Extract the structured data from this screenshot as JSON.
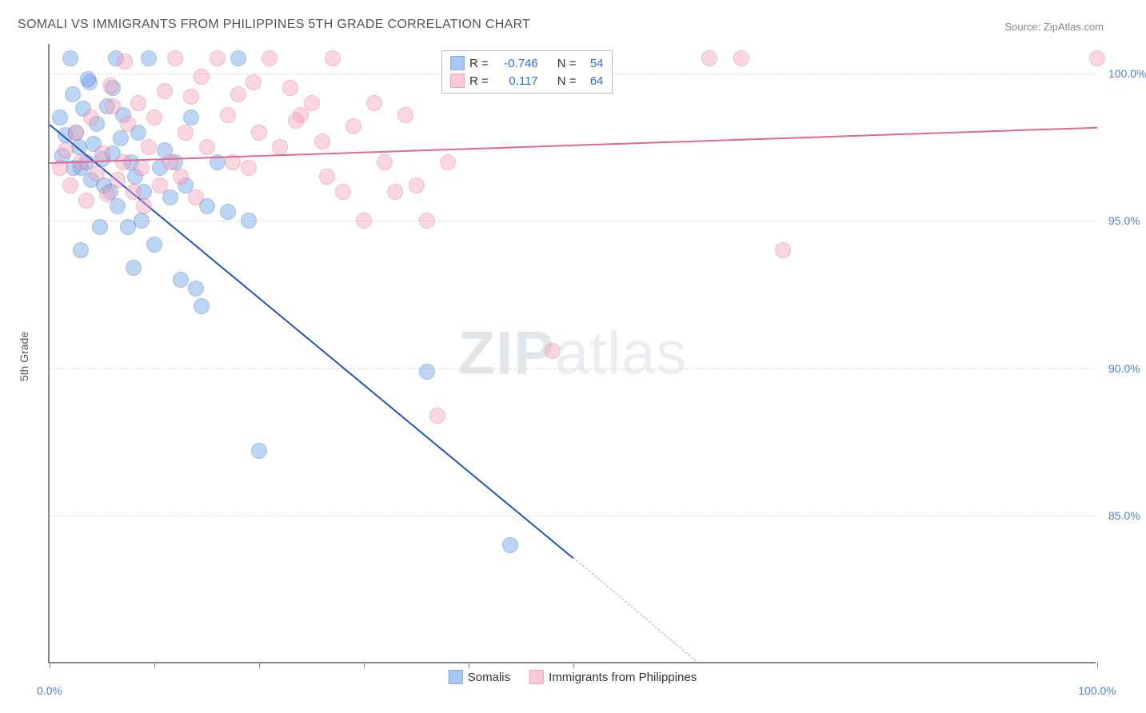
{
  "title": "SOMALI VS IMMIGRANTS FROM PHILIPPINES 5TH GRADE CORRELATION CHART",
  "source": "Source: ZipAtlas.com",
  "ylabel": "5th Grade",
  "watermark_a": "ZIP",
  "watermark_b": "atlas",
  "chart": {
    "type": "scatter",
    "background_color": "#ffffff",
    "grid_color": "#dddddd",
    "axis_color": "#888888",
    "tick_label_color": "#4a7fd6",
    "xlim": [
      0,
      100
    ],
    "ylim": [
      80,
      101
    ],
    "yticks": [
      85,
      90,
      95,
      100
    ],
    "ytick_labels": [
      "85.0%",
      "90.0%",
      "95.0%",
      "100.0%"
    ],
    "xticks": [
      0,
      10,
      20,
      30,
      40,
      50,
      100
    ],
    "xtick_labels_shown": {
      "0": "0.0%",
      "100": "100.0%"
    },
    "point_radius": 10,
    "point_opacity": 0.45,
    "series": [
      {
        "name": "Somalis",
        "color": "#6fa4e8",
        "stroke": "#3b73c9",
        "R": "-0.746",
        "N": "54",
        "trend": {
          "x1": 0,
          "y1": 98.3,
          "x2": 50,
          "y2": 83.6,
          "color": "#1f56c4",
          "width": 2
        },
        "trend_ext": {
          "x1": 50,
          "y1": 83.6,
          "x2": 62,
          "y2": 80.0,
          "color": "#aaaaaa",
          "dashed": true
        },
        "points": [
          [
            1.0,
            98.5
          ],
          [
            1.5,
            97.9
          ],
          [
            2.0,
            100.5
          ],
          [
            2.2,
            99.3
          ],
          [
            2.5,
            98.0
          ],
          [
            2.8,
            97.5
          ],
          [
            3.0,
            96.8
          ],
          [
            3.2,
            98.8
          ],
          [
            3.5,
            97.0
          ],
          [
            3.8,
            99.7
          ],
          [
            4.0,
            96.4
          ],
          [
            4.2,
            97.6
          ],
          [
            4.5,
            98.3
          ],
          [
            5.0,
            97.1
          ],
          [
            5.2,
            96.2
          ],
          [
            5.5,
            98.9
          ],
          [
            5.8,
            96.0
          ],
          [
            6.0,
            97.3
          ],
          [
            6.3,
            100.5
          ],
          [
            6.5,
            95.5
          ],
          [
            6.8,
            97.8
          ],
          [
            7.0,
            98.6
          ],
          [
            7.5,
            94.8
          ],
          [
            7.8,
            97.0
          ],
          [
            8.0,
            93.4
          ],
          [
            8.2,
            96.5
          ],
          [
            8.5,
            98.0
          ],
          [
            8.8,
            95.0
          ],
          [
            9.0,
            96.0
          ],
          [
            9.5,
            100.5
          ],
          [
            10.0,
            94.2
          ],
          [
            10.5,
            96.8
          ],
          [
            11.0,
            97.4
          ],
          [
            11.5,
            95.8
          ],
          [
            12.0,
            97.0
          ],
          [
            12.5,
            93.0
          ],
          [
            13.0,
            96.2
          ],
          [
            13.5,
            98.5
          ],
          [
            14.0,
            92.7
          ],
          [
            14.5,
            92.1
          ],
          [
            15.0,
            95.5
          ],
          [
            16.0,
            97.0
          ],
          [
            17.0,
            95.3
          ],
          [
            18.0,
            100.5
          ],
          [
            19.0,
            95.0
          ],
          [
            20.0,
            87.2
          ],
          [
            36.0,
            89.9
          ],
          [
            44.0,
            84.0
          ],
          [
            3.0,
            94.0
          ],
          [
            4.8,
            94.8
          ],
          [
            6.0,
            99.5
          ],
          [
            1.2,
            97.2
          ],
          [
            2.3,
            96.8
          ],
          [
            3.7,
            99.8
          ]
        ]
      },
      {
        "name": "Immigrants from Philippines",
        "color": "#f4a6bb",
        "stroke": "#e06a8c",
        "R": "0.117",
        "N": "64",
        "trend": {
          "x1": 0,
          "y1": 97.0,
          "x2": 100,
          "y2": 98.2,
          "color": "#e06a8c",
          "width": 2
        },
        "points": [
          [
            1.0,
            96.8
          ],
          [
            1.5,
            97.4
          ],
          [
            2.0,
            96.2
          ],
          [
            2.5,
            98.0
          ],
          [
            3.0,
            97.0
          ],
          [
            3.5,
            95.7
          ],
          [
            4.0,
            98.5
          ],
          [
            4.5,
            96.6
          ],
          [
            5.0,
            97.3
          ],
          [
            5.5,
            95.9
          ],
          [
            6.0,
            98.9
          ],
          [
            6.5,
            96.4
          ],
          [
            7.0,
            97.0
          ],
          [
            7.5,
            98.3
          ],
          [
            8.0,
            96.0
          ],
          [
            8.5,
            99.0
          ],
          [
            9.0,
            95.5
          ],
          [
            9.5,
            97.5
          ],
          [
            10.0,
            98.5
          ],
          [
            10.5,
            96.2
          ],
          [
            11.0,
            99.4
          ],
          [
            11.5,
            97.0
          ],
          [
            12.0,
            100.5
          ],
          [
            12.5,
            96.5
          ],
          [
            13.0,
            98.0
          ],
          [
            13.5,
            99.2
          ],
          [
            14.0,
            95.8
          ],
          [
            15.0,
            97.5
          ],
          [
            16.0,
            100.5
          ],
          [
            17.0,
            98.6
          ],
          [
            18.0,
            99.3
          ],
          [
            19.0,
            96.8
          ],
          [
            20.0,
            98.0
          ],
          [
            21.0,
            100.5
          ],
          [
            22.0,
            97.5
          ],
          [
            23.0,
            99.5
          ],
          [
            24.0,
            98.6
          ],
          [
            25.0,
            99.0
          ],
          [
            26.0,
            97.7
          ],
          [
            27.0,
            100.5
          ],
          [
            28.0,
            96.0
          ],
          [
            29.0,
            98.2
          ],
          [
            30.0,
            95.0
          ],
          [
            31.0,
            99.0
          ],
          [
            32.0,
            97.0
          ],
          [
            33.0,
            96.0
          ],
          [
            34.0,
            98.6
          ],
          [
            35.0,
            96.2
          ],
          [
            36.0,
            95.0
          ],
          [
            37.0,
            88.4
          ],
          [
            38.0,
            97.0
          ],
          [
            26.5,
            96.5
          ],
          [
            48.0,
            90.6
          ],
          [
            63.0,
            100.5
          ],
          [
            66.0,
            100.5
          ],
          [
            70.0,
            94.0
          ],
          [
            100.0,
            100.5
          ],
          [
            5.8,
            99.6
          ],
          [
            7.2,
            100.4
          ],
          [
            8.8,
            96.8
          ],
          [
            14.5,
            99.9
          ],
          [
            17.5,
            97.0
          ],
          [
            19.5,
            99.7
          ],
          [
            23.5,
            98.4
          ]
        ]
      }
    ]
  },
  "stats_box": {
    "labels": {
      "R": "R =",
      "N": "N ="
    }
  },
  "legend": {
    "label_a": "Somalis",
    "label_b": "Immigrants from Philippines"
  }
}
